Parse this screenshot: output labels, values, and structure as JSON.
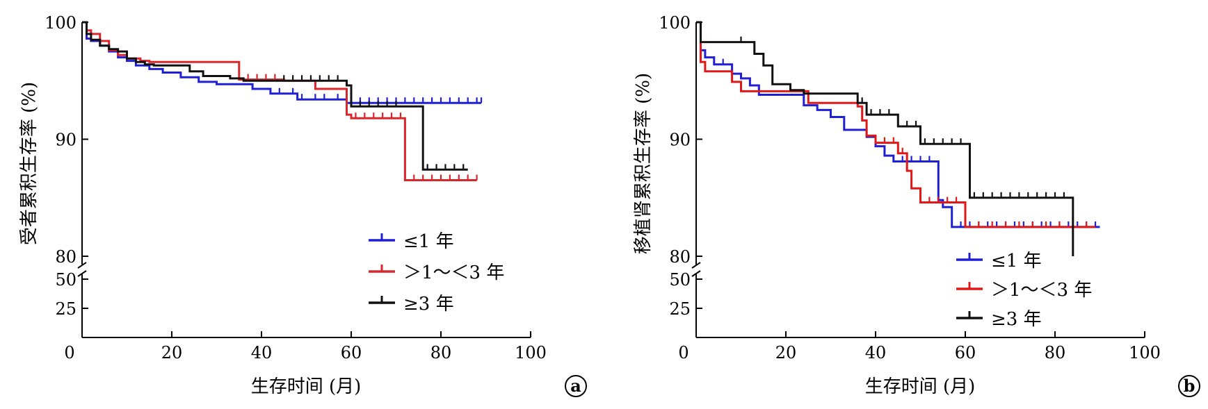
{
  "chart_data": [
    {
      "panel_label": "a",
      "type": "line",
      "step": true,
      "xlabel": "生存时间 (月)",
      "ylabel": "受者累积生存率 (%)",
      "xlim": [
        0,
        100
      ],
      "xticks": [
        0,
        20,
        40,
        60,
        80,
        100
      ],
      "ylim_main": [
        80,
        100
      ],
      "yticks_main": [
        80,
        90,
        100
      ],
      "ylim_lower": [
        0,
        50
      ],
      "yticks_lower": [
        25,
        50
      ],
      "y_axis_break": true,
      "grid": false,
      "legend_position": "lower-right",
      "series": [
        {
          "name": "≤1 年",
          "color": "#1f1fd6",
          "x": [
            0,
            1,
            2,
            4,
            6,
            8,
            10,
            12,
            15,
            18,
            22,
            26,
            30,
            35,
            38,
            42,
            48,
            56,
            59,
            60,
            89
          ],
          "y": [
            100,
            98.6,
            98.4,
            98.0,
            97.5,
            97.0,
            96.7,
            96.3,
            96.0,
            95.7,
            95.3,
            94.9,
            94.7,
            94.7,
            94.3,
            93.9,
            93.4,
            93.4,
            93.1,
            93.1,
            93.1
          ],
          "censored_x": [
            44,
            47,
            49,
            52,
            54,
            57,
            60,
            62,
            64,
            66,
            68,
            70,
            72,
            74,
            76,
            78,
            80,
            82,
            84,
            86,
            88,
            89
          ]
        },
        {
          "name": "＞1～＜3 年",
          "color": "#d9262b",
          "x": [
            0,
            1,
            2,
            4,
            6,
            8,
            10,
            13,
            15,
            33,
            35,
            45,
            52,
            59,
            60,
            72,
            73,
            88
          ],
          "y": [
            100,
            99.3,
            99.0,
            98.4,
            97.6,
            97.2,
            96.9,
            96.7,
            96.6,
            96.6,
            95.1,
            95.0,
            94.3,
            92.1,
            91.8,
            86.5,
            86.5,
            86.5
          ],
          "censored_x": [
            37,
            39,
            41,
            43,
            61,
            63,
            65,
            67,
            69,
            71,
            74,
            76,
            78,
            80,
            82,
            84,
            86,
            88
          ]
        },
        {
          "name": "≥3 年",
          "color": "#111111",
          "x": [
            0,
            1,
            2,
            4,
            6,
            8,
            10,
            12,
            14,
            16,
            24,
            27,
            33,
            36,
            40,
            46,
            59,
            60,
            75,
            76,
            86
          ],
          "y": [
            100,
            99.0,
            98.5,
            98.0,
            97.7,
            97.5,
            96.9,
            96.6,
            96.4,
            96.3,
            95.8,
            95.4,
            95.2,
            95.0,
            95.0,
            95.0,
            94.6,
            92.8,
            92.8,
            87.4,
            87.4
          ],
          "censored_x": [
            45,
            47,
            49,
            51,
            53,
            55,
            57,
            59,
            62,
            64,
            66,
            68,
            70,
            77,
            79,
            81,
            83,
            85
          ]
        }
      ]
    },
    {
      "panel_label": "b",
      "type": "line",
      "step": true,
      "xlabel": "生存时间 (月)",
      "ylabel": "移植肾累积生存率 (%)",
      "xlim": [
        0,
        100
      ],
      "xticks": [
        0,
        20,
        40,
        60,
        80,
        100
      ],
      "ylim_main": [
        80,
        100
      ],
      "yticks_main": [
        80,
        90,
        100
      ],
      "ylim_lower": [
        0,
        50
      ],
      "yticks_lower": [
        25,
        50
      ],
      "y_axis_break": true,
      "grid": false,
      "legend_position": "lower-right",
      "series": [
        {
          "name": "≤1 年",
          "color": "#1f1fd6",
          "x": [
            0,
            1,
            2,
            4,
            8,
            10,
            12,
            14,
            22,
            24,
            27,
            30,
            33,
            36,
            38,
            40,
            42,
            44,
            54,
            55,
            57,
            90
          ],
          "y": [
            100,
            97.6,
            97.0,
            96.4,
            95.6,
            95.2,
            94.6,
            93.8,
            93.8,
            92.9,
            92.5,
            91.9,
            90.8,
            90.8,
            90.2,
            89.4,
            88.6,
            88.1,
            84.8,
            84.2,
            82.5,
            82.5
          ],
          "censored_x": [
            4,
            6,
            8,
            10,
            12,
            46,
            48,
            50,
            52,
            54,
            57,
            59,
            61,
            63,
            65,
            67,
            69,
            71,
            73,
            75,
            77,
            79,
            81,
            83,
            85,
            87,
            89
          ]
        },
        {
          "name": "＞1～＜3 年",
          "color": "#e01818",
          "x": [
            0,
            1,
            2,
            5,
            8,
            10,
            12,
            15,
            24,
            25,
            33,
            36,
            37,
            38,
            40,
            45,
            47,
            48,
            50,
            52,
            55,
            59,
            60,
            89
          ],
          "y": [
            100,
            96.6,
            95.8,
            95.8,
            94.9,
            94.1,
            94.1,
            94.1,
            94.1,
            93.1,
            93.1,
            92.8,
            91.6,
            90.3,
            89.7,
            88.8,
            87.3,
            85.8,
            84.6,
            84.6,
            84.6,
            84.6,
            82.5,
            82.5
          ],
          "censored_x": [
            36,
            38,
            40,
            42,
            44,
            46,
            50,
            52,
            54,
            56,
            58,
            60,
            63,
            66,
            69,
            72,
            75,
            78,
            81,
            84,
            87
          ]
        },
        {
          "name": "≥3 年",
          "color": "#111111",
          "x": [
            0,
            1,
            11,
            13,
            15,
            17,
            21,
            24,
            33,
            36,
            38,
            41,
            45,
            50,
            55,
            60,
            61,
            83,
            84
          ],
          "y": [
            100,
            98.3,
            98.3,
            97.3,
            96.3,
            94.7,
            94.2,
            93.9,
            93.9,
            93.1,
            92.1,
            92.1,
            91.1,
            89.6,
            89.6,
            89.6,
            85.0,
            85.0,
            80.0
          ],
          "censored_x": [
            10,
            37,
            39,
            41,
            43,
            45,
            47,
            49,
            51,
            53,
            55,
            57,
            59,
            62,
            64,
            66,
            68,
            70,
            72,
            74,
            76,
            78,
            80,
            82
          ]
        }
      ]
    }
  ]
}
